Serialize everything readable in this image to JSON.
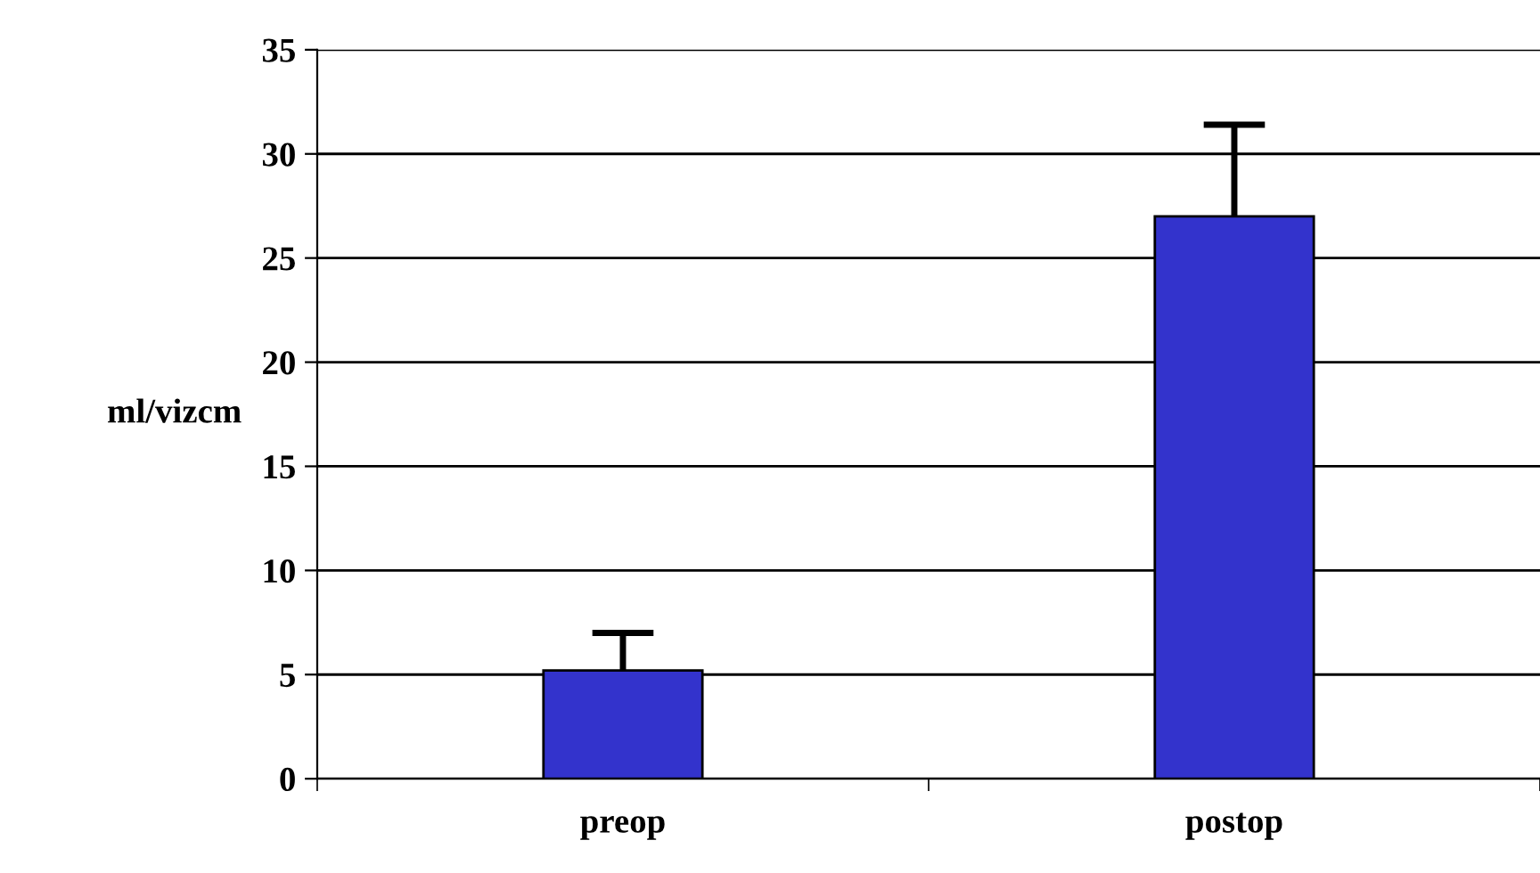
{
  "chart_data": {
    "type": "bar",
    "ylabel": "ml/vizcm",
    "categories": [
      "preop",
      "postop"
    ],
    "values": [
      5.2,
      27.0
    ],
    "errors": [
      [
        5.2,
        7.0
      ],
      [
        27.0,
        31.4
      ]
    ],
    "color": "#3333cc",
    "ylim": [
      0,
      35
    ],
    "yticks": [
      0,
      5,
      10,
      15,
      20,
      25,
      30,
      35
    ],
    "grid": "y",
    "legend": false
  }
}
